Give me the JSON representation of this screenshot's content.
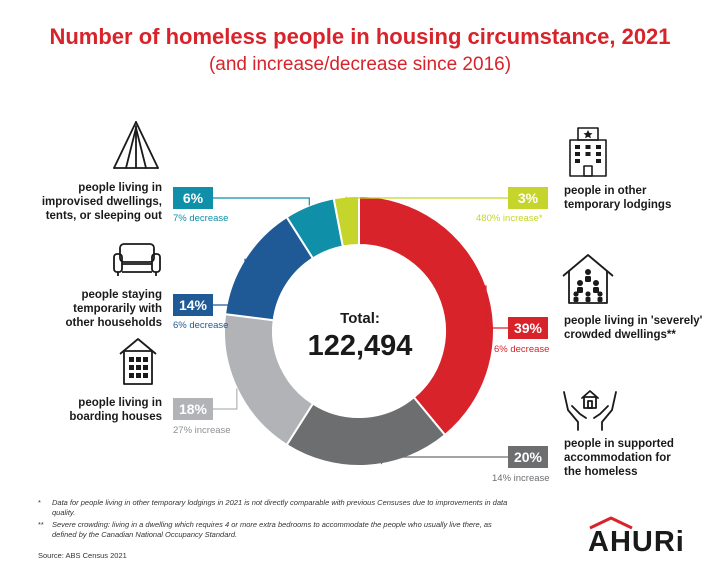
{
  "title": "Number of homeless people in housing circumstance, 2021",
  "subtitle": "(and increase/decrease since 2016)",
  "total": {
    "label": "Total:",
    "value": "122,494"
  },
  "chart_data": {
    "type": "pie",
    "title": "Number of homeless people in housing circumstance, 2021",
    "subtitle": "(and increase/decrease since 2016)",
    "total": 122494,
    "slices": [
      {
        "name": "people living in 'severely' crowded dwellings**",
        "value": 39,
        "label": "39%",
        "change": "6% decrease",
        "color": "#d8232a"
      },
      {
        "name": "people in supported accommodation for the homeless",
        "value": 20,
        "label": "20%",
        "change": "14% increase",
        "color": "#6d6e70"
      },
      {
        "name": "people living in boarding houses",
        "value": 18,
        "label": "18%",
        "change": "27% increase",
        "color": "#b1b3b6"
      },
      {
        "name": "people staying temporarily with other households",
        "value": 14,
        "label": "14%",
        "change": "6% decrease",
        "color": "#1f5a96"
      },
      {
        "name": "people living in improvised dwellings, tents, or sleeping out",
        "value": 6,
        "label": "6%",
        "change": "7% decrease",
        "color": "#0f8fa8"
      },
      {
        "name": "people in other temporary lodgings",
        "value": 3,
        "label": "3%",
        "change": "480% increase*",
        "color": "#c5d52b"
      }
    ]
  },
  "footnotes": [
    {
      "mark": "*",
      "text": "Data for people living in other temporary lodgings in 2021 is not directly comparable with previous Censuses due to improvements in data quality."
    },
    {
      "mark": "**",
      "text": "Severe crowding: living in a dwelling which requires 4 or more extra bedrooms to accommodate the people who usually live there, as defined by the Canadian National Occupancy Standard."
    }
  ],
  "source": "Source: ABS Census 2021",
  "logo": "AHURi",
  "icons": [
    "tent-icon",
    "sofa-icon",
    "boarding-house-icon",
    "hotel-icon",
    "crowded-house-icon",
    "supported-hands-icon"
  ]
}
